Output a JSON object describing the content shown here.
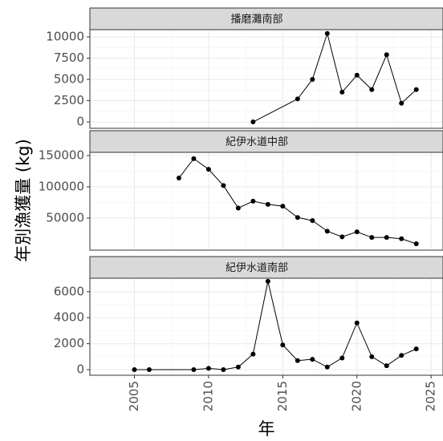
{
  "y_label": "年別漁獲量 (kg)",
  "x_label": "年",
  "xlim": [
    2002,
    2025.8
  ],
  "xticks": [
    2005,
    2010,
    2015,
    2020,
    2025
  ],
  "chart_data": [
    {
      "type": "line",
      "title": "播磨灘南部",
      "color": "#000000",
      "x": [
        2013,
        2016,
        2017,
        2018,
        2019,
        2020,
        2021,
        2022,
        2023,
        2024
      ],
      "values": [
        0,
        2700,
        5000,
        10400,
        3500,
        5500,
        3800,
        7900,
        2200,
        3800
      ],
      "ylim": [
        -750,
        10850
      ],
      "yticks": [
        0,
        2500,
        5000,
        7500,
        10000
      ]
    },
    {
      "type": "line",
      "title": "紀伊水道中部",
      "color": "#000000",
      "x": [
        2008,
        2009,
        2010,
        2011,
        2012,
        2013,
        2014,
        2015,
        2016,
        2017,
        2018,
        2019,
        2020,
        2021,
        2022,
        2023,
        2024
      ],
      "values": [
        114000,
        145000,
        128000,
        102000,
        66000,
        77000,
        72000,
        69000,
        51000,
        46000,
        29000,
        20000,
        28000,
        19000,
        19000,
        17000,
        9000
      ],
      "ylim": [
        -1300,
        155100
      ],
      "yticks": [
        50000,
        100000,
        150000
      ]
    },
    {
      "type": "line",
      "title": "紀伊水道南部",
      "color": "#000000",
      "x": [
        2005,
        2006,
        2009,
        2010,
        2011,
        2012,
        2013,
        2014,
        2015,
        2016,
        2017,
        2018,
        2019,
        2020,
        2021,
        2022,
        2023,
        2024
      ],
      "values": [
        0,
        0,
        0,
        100,
        0,
        200,
        1200,
        6800,
        1900,
        700,
        800,
        200,
        900,
        3600,
        1000,
        300,
        1100,
        1600
      ],
      "ylim": [
        -430,
        7040
      ],
      "yticks": [
        0,
        2000,
        4000,
        6000
      ]
    }
  ]
}
